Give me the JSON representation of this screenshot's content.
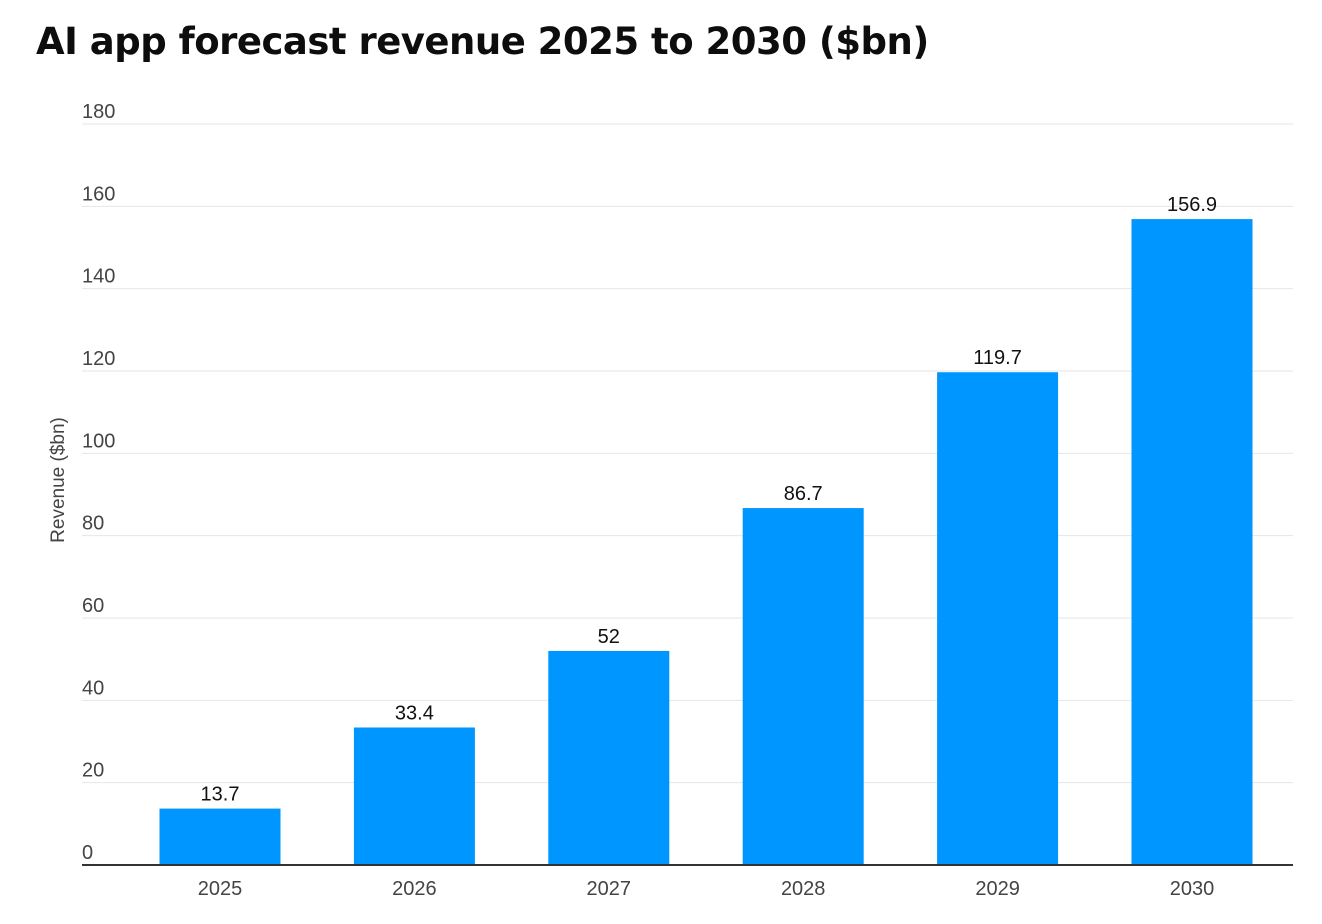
{
  "chart_data": {
    "type": "bar",
    "title": "AI app forecast revenue 2025 to 2030 ($bn)",
    "xlabel": "",
    "ylabel": "Revenue ($bn)",
    "categories": [
      "2025",
      "2026",
      "2027",
      "2028",
      "2029",
      "2030"
    ],
    "values": [
      13.7,
      33.4,
      52,
      86.7,
      119.7,
      156.9
    ],
    "data_labels": [
      "13.7",
      "33.4",
      "52",
      "86.7",
      "119.7",
      "156.9"
    ],
    "ylim": [
      0,
      180
    ],
    "yticks": [
      "0",
      "20",
      "40",
      "60",
      "80",
      "100",
      "120",
      "140",
      "160",
      "180"
    ],
    "grid": true,
    "legend": "none",
    "bar_color": "#0096FF",
    "grid_color": "#E6E6E6",
    "axis_color": "#333333"
  }
}
